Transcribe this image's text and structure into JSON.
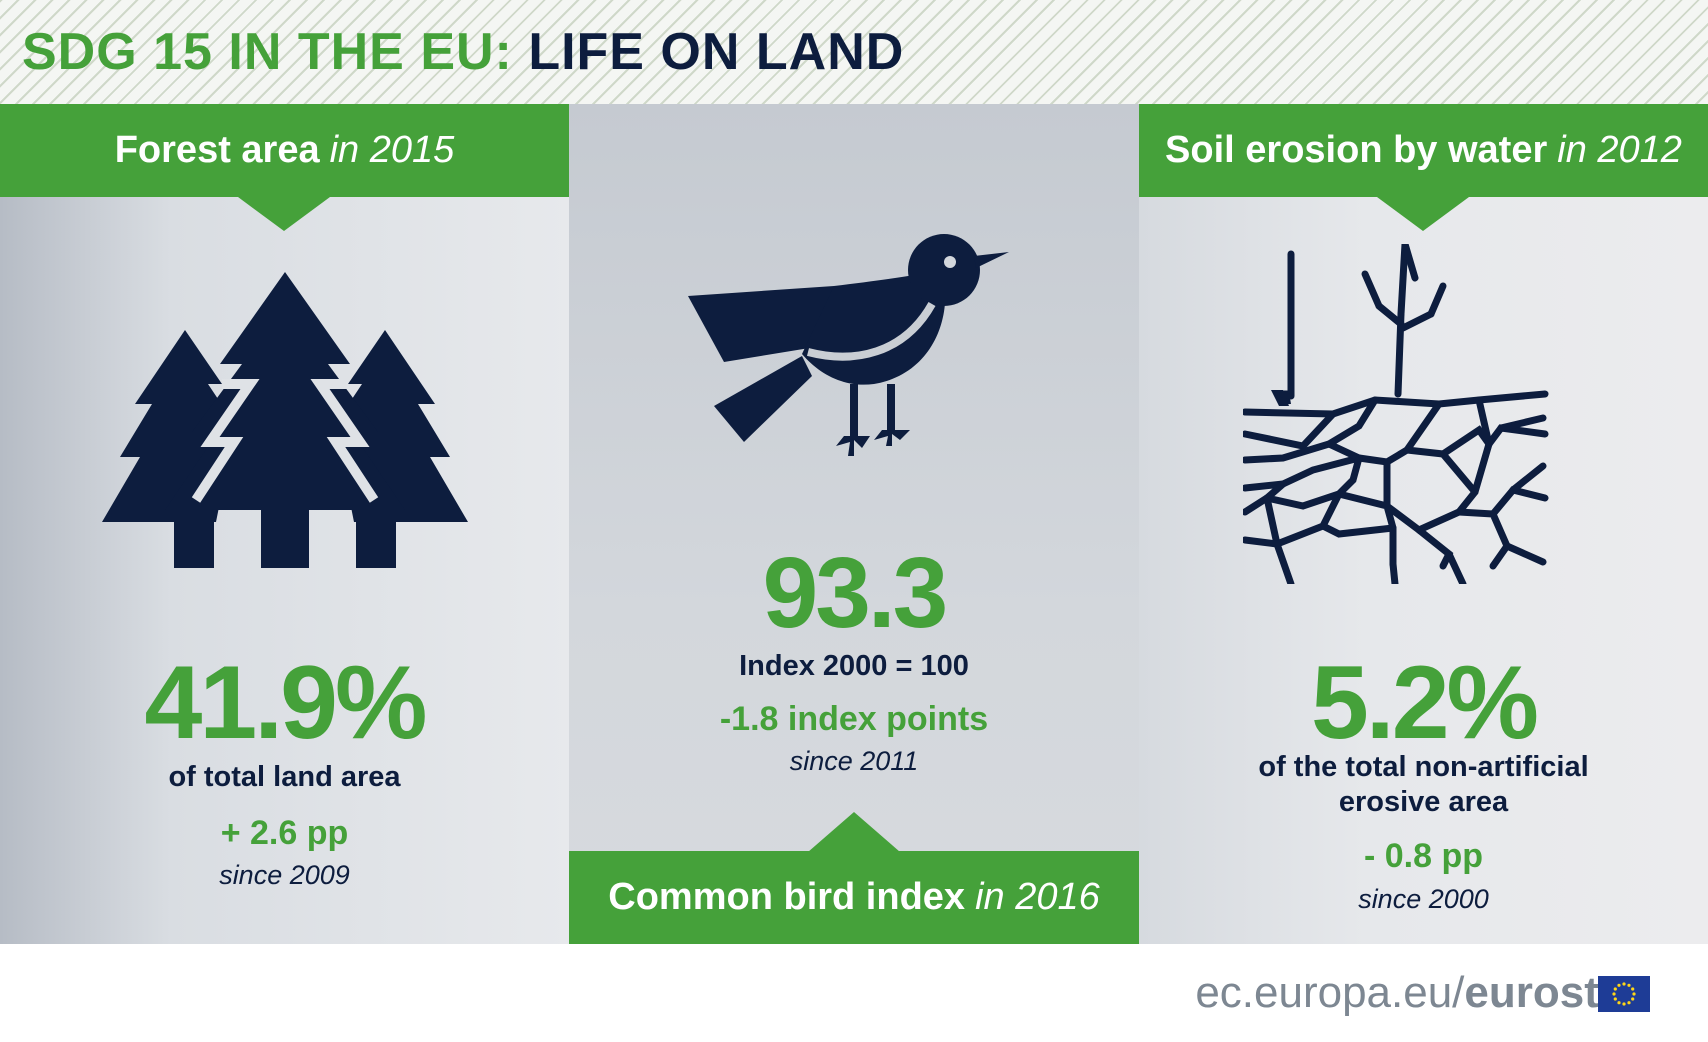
{
  "header": {
    "title_part1": "SDG 15 IN THE EU:",
    "title_part2": "LIFE ON LAND"
  },
  "panels": {
    "forest": {
      "label": "Forest area",
      "label_year": "in 2015",
      "value": "41.9%",
      "description": "of total land area",
      "change": "+ 2.6 pp",
      "since": "since 2009",
      "icon": "trees-icon"
    },
    "bird": {
      "label": "Common bird index",
      "label_year": "in 2016",
      "value": "93.3",
      "description": "Index 2000 = 100",
      "change": "-1.8 index points",
      "since": "since 2011",
      "icon": "bird-icon"
    },
    "soil": {
      "label": "Soil erosion by water",
      "label_year": "in 2012",
      "value": "5.2%",
      "description_line1": "of the total non-artificial",
      "description_line2": "erosive area",
      "change": "- 0.8 pp",
      "since": "since 2000",
      "icon": "cracked-soil-tree-icon"
    }
  },
  "footer": {
    "url_prefix": "ec.europa.eu/",
    "brand": "eurostat",
    "logo": "eu-flag-icon"
  },
  "colors": {
    "green": "#45a13a",
    "navy": "#0d1d3e",
    "footer_grey": "#7d8792"
  }
}
